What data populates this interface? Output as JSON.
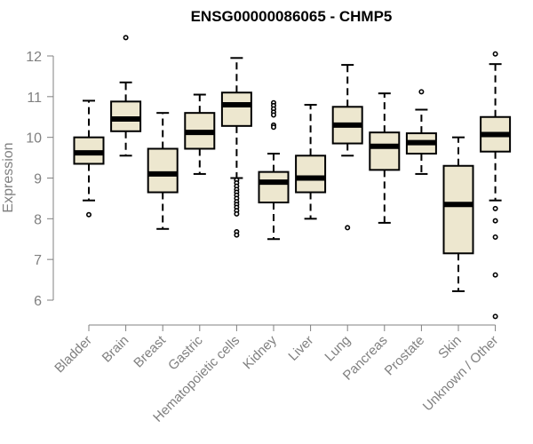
{
  "chart_data": {
    "type": "box",
    "title": "ENSG00000086065 - CHMP5",
    "ylabel": "Expression",
    "ylim": [
      5.5,
      12.5
    ],
    "yticks": [
      6,
      7,
      8,
      9,
      10,
      11,
      12
    ],
    "colors": {
      "box_fill": "#ede7cf",
      "box_stroke": "#000000",
      "axis": "#808080"
    },
    "grid": false,
    "categories": [
      "Bladder",
      "Brain",
      "Breast",
      "Gastric",
      "Hematopoietic cells",
      "Kidney",
      "Liver",
      "Lung",
      "Pancreas",
      "Prostate",
      "Skin",
      "Unknown / Other"
    ],
    "boxes": [
      {
        "whisker_low": 8.45,
        "q1": 9.35,
        "median": 9.62,
        "q3": 10.0,
        "whisker_high": 10.9,
        "outliers": [
          8.1
        ]
      },
      {
        "whisker_low": 9.55,
        "q1": 10.15,
        "median": 10.45,
        "q3": 10.88,
        "whisker_high": 11.35,
        "outliers": [
          12.45
        ]
      },
      {
        "whisker_low": 7.75,
        "q1": 8.65,
        "median": 9.1,
        "q3": 9.72,
        "whisker_high": 10.6,
        "outliers": []
      },
      {
        "whisker_low": 9.1,
        "q1": 9.72,
        "median": 10.12,
        "q3": 10.6,
        "whisker_high": 11.05,
        "outliers": []
      },
      {
        "whisker_low": 9.0,
        "q1": 10.28,
        "median": 10.8,
        "q3": 11.1,
        "whisker_high": 11.95,
        "outliers": [
          8.95,
          8.88,
          8.8,
          8.72,
          8.65,
          8.58,
          8.5,
          8.42,
          8.35,
          8.28,
          8.2,
          8.12,
          7.68,
          7.6
        ]
      },
      {
        "whisker_low": 7.5,
        "q1": 8.4,
        "median": 8.9,
        "q3": 9.15,
        "whisker_high": 9.6,
        "outliers": [
          10.85,
          10.78,
          10.7,
          10.62,
          10.55,
          10.3,
          10.25
        ]
      },
      {
        "whisker_low": 8.0,
        "q1": 8.65,
        "median": 9.0,
        "q3": 9.55,
        "whisker_high": 10.8,
        "outliers": []
      },
      {
        "whisker_low": 9.55,
        "q1": 9.85,
        "median": 10.3,
        "q3": 10.75,
        "whisker_high": 11.78,
        "outliers": [
          7.78
        ]
      },
      {
        "whisker_low": 7.9,
        "q1": 9.2,
        "median": 9.78,
        "q3": 10.12,
        "whisker_high": 11.08,
        "outliers": []
      },
      {
        "whisker_low": 9.1,
        "q1": 9.6,
        "median": 9.87,
        "q3": 10.1,
        "whisker_high": 10.68,
        "outliers": [
          11.12
        ]
      },
      {
        "whisker_low": 6.22,
        "q1": 7.15,
        "median": 8.35,
        "q3": 9.3,
        "whisker_high": 10.0,
        "outliers": []
      },
      {
        "whisker_low": 8.45,
        "q1": 9.65,
        "median": 10.07,
        "q3": 10.5,
        "whisker_high": 11.8,
        "outliers": [
          12.05,
          8.25,
          7.95,
          7.55,
          6.62,
          5.6
        ]
      }
    ]
  }
}
